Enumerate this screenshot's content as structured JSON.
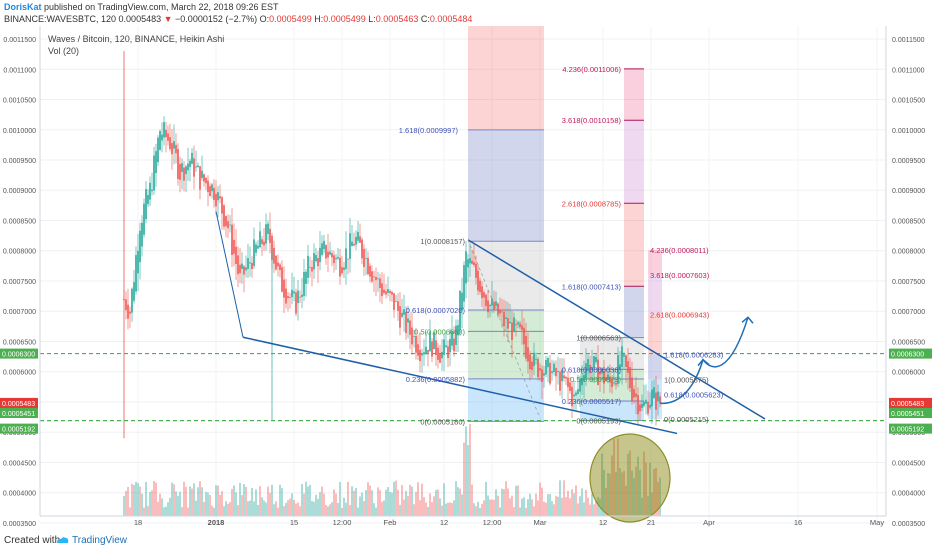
{
  "header": {
    "author": "DorisKat",
    "published": "published on TradingView.com, March 22, 2018 09:26 EST",
    "symbol": "BINANCE:WAVESBTC, 120",
    "price": "0.0005483",
    "change_arrow": "▼",
    "change": "−0.0000152 (−2.7%)",
    "o_label": "O:",
    "o_val": "0.0005499",
    "h_label": "H:",
    "h_val": "0.0005499",
    "l_label": "L:",
    "l_val": "0.0005463",
    "c_label": "C:",
    "c_val": "0.0005484"
  },
  "overlay": {
    "title": "Waves / Bitcoin, 120, BINANCE, Heikin Ashi",
    "vol": "Vol (20)"
  },
  "footer": {
    "created": "Created with",
    "brand": "TradingView",
    "logo_icon": "tradingview-logo-icon"
  },
  "colors": {
    "up": "#26a69a",
    "down": "#ef5350",
    "trendline": "#1e5fa8",
    "support": "#4caf50",
    "fib_blue": "#3f51b5",
    "fib_red": "#e53935",
    "fib_pink": "#c2185b"
  },
  "chart_data": {
    "type": "candlestick",
    "style": "Heikin Ashi",
    "ylim": [
      0.000345,
      0.0011715
    ],
    "x_ticks": [
      "18",
      "2018",
      "15",
      "12:00",
      "Feb",
      "12",
      "12:00",
      "Mar",
      "12",
      "21",
      "Apr",
      "16",
      "May"
    ],
    "y_ticks": [
      "0.0011500",
      "0.0011000",
      "0.0010500",
      "0.0010000",
      "0.0009500",
      "0.0009000",
      "0.0008500",
      "0.0008000",
      "0.0007500",
      "0.0007000",
      "0.0006500",
      "0.0006000",
      "0.0005500",
      "0.0005000",
      "0.0004500",
      "0.0004000",
      "0.0003500"
    ],
    "price_labels": [
      {
        "text": "0.0006300",
        "kind": "green"
      },
      {
        "text": "0.0005484",
        "kind": "red"
      },
      {
        "text": "01:33:11",
        "kind": "red"
      },
      {
        "text": "0.0005483",
        "kind": "red"
      },
      {
        "text": "0.0005451",
        "kind": "green"
      },
      {
        "text": "0.0005192",
        "kind": "green"
      }
    ],
    "support_levels": [
      0.00063,
      0.0005192
    ],
    "fib_labels": [
      {
        "text": "1.618(0.0009997)",
        "color": "blue"
      },
      {
        "text": "1(0.0008157)",
        "color": "gray"
      },
      {
        "text": "0.618(0.0007020)",
        "color": "blue"
      },
      {
        "text": "0.5(0.0006668)",
        "color": "green"
      },
      {
        "text": "0.236(0.0005882)",
        "color": "blue"
      },
      {
        "text": "0(0.0005180)",
        "color": "gray"
      },
      {
        "text": "4.236(0.0011006)",
        "color": "pink"
      },
      {
        "text": "3.618(0.0010158)",
        "color": "pink"
      },
      {
        "text": "2.618(0.0008785)",
        "color": "red"
      },
      {
        "text": "1.618(0.0007413)",
        "color": "blue"
      },
      {
        "text": "1(0.0006563)",
        "color": "gray"
      },
      {
        "text": "0.618(0.0006038)",
        "color": "blue"
      },
      {
        "text": "0.5(0.0005879)",
        "color": "green"
      },
      {
        "text": "0.236(0.0005517)",
        "color": "blue"
      },
      {
        "text": "0(0.0005193)",
        "color": "gray"
      },
      {
        "text": "4.236(0.0008011)",
        "color": "pink"
      },
      {
        "text": "3.618(0.0007603)",
        "color": "pink"
      },
      {
        "text": "2.618(0.0006943)",
        "color": "red"
      },
      {
        "text": "1.618(0.0006283)",
        "color": "blue"
      },
      {
        "text": "1(0.0005875)",
        "color": "gray"
      },
      {
        "text": "0.618(0.0005623)",
        "color": "blue"
      },
      {
        "text": "0(0.0005215)",
        "color": "gray"
      }
    ]
  }
}
